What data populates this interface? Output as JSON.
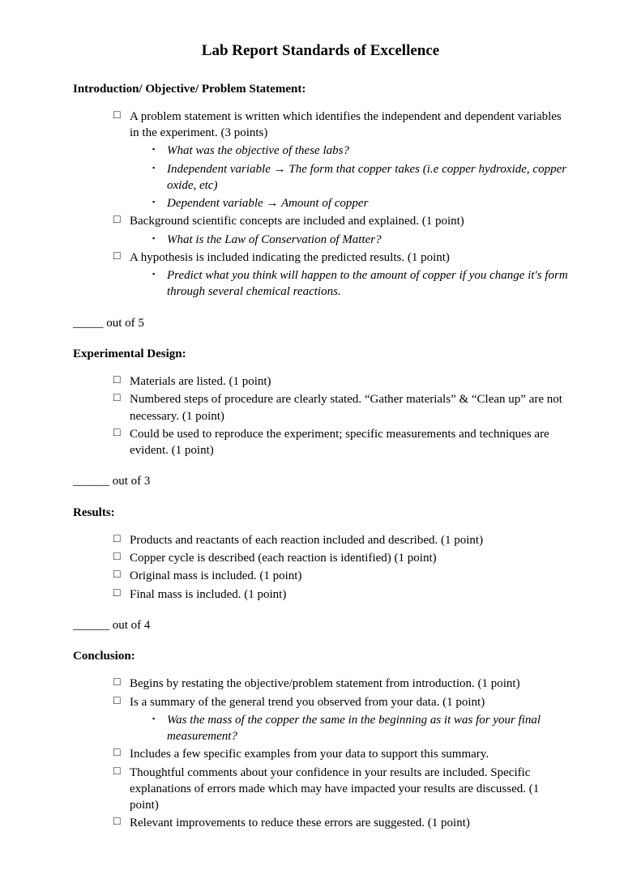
{
  "title": "Lab Report Standards of Excellence",
  "sections": {
    "intro": {
      "heading": "Introduction/ Objective/ Problem Statement:",
      "item1": "A problem statement is written which identifies the independent and dependent variables in the experiment. (3 points)",
      "item1_sub1": "What was the objective of these labs?",
      "item1_sub2": "Independent variable → The form that copper takes (i.e copper hydroxide, copper oxide, etc)",
      "item1_sub3": "Dependent variable → Amount of copper",
      "item2": "Background scientific concepts are included and explained. (1 point)",
      "item2_sub1": "What is the Law of Conservation of Matter?",
      "item3": "A hypothesis is included indicating the predicted results. (1 point)",
      "item3_sub1": "Predict what you think will happen to the amount of copper if you change it's form through several chemical reactions.",
      "score": "_____ out of 5"
    },
    "design": {
      "heading": "Experimental Design:",
      "item1": "Materials are listed. (1 point)",
      "item2": "Numbered steps of procedure are clearly stated.  “Gather materials” & “Clean up” are not necessary. (1 point)",
      "item3": "Could be used to reproduce the experiment; specific measurements and techniques are evident. (1 point)",
      "score": "______ out of 3"
    },
    "results": {
      "heading": "Results:",
      "item1": "Products and reactants of each reaction included and described. (1 point)",
      "item2": "Copper cycle is described (each reaction is identified) (1 point)",
      "item3": "Original mass is included. (1 point)",
      "item4": "Final mass is included. (1 point)",
      "score": "______ out of 4"
    },
    "conclusion": {
      "heading": "Conclusion:",
      "item1": "Begins by restating the objective/problem statement from introduction. (1 point)",
      "item2": "Is a summary of the general trend you observed from your data. (1 point)",
      "item2_sub1": "Was the mass of the copper the same in the beginning as it was for your final measurement?",
      "item3": "Includes a few specific examples from your data to support this summary.",
      "item4": "Thoughtful comments about your confidence in your results are included. Specific explanations of errors made which may have impacted your results are discussed. (1 point)",
      "item5": "Relevant improvements to reduce these errors are suggested. (1 point)"
    }
  }
}
